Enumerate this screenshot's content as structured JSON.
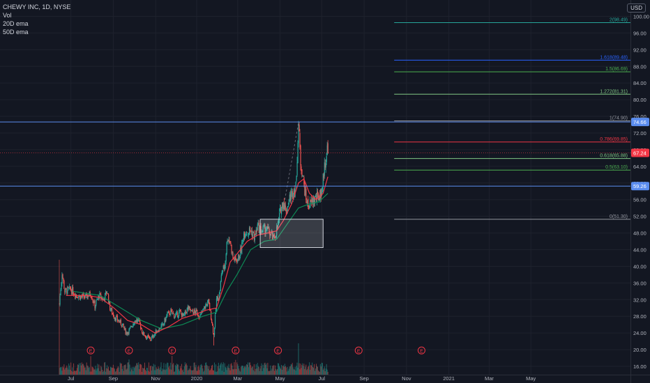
{
  "legend": {
    "title": "CHEWY INC, 1D, NYSE",
    "vol": "Vol",
    "ema20": "20D ema",
    "ema50": "50D ema"
  },
  "currency": "USD",
  "colors": {
    "up": "#26a69a",
    "down": "#ef5350",
    "ema20": "#f23645",
    "ema50": "#0d8a55",
    "hline": "#5b8def",
    "box": "#ffffff"
  },
  "chart_data": {
    "type": "candlestick",
    "ylim": [
      14,
      102.5
    ],
    "y_ticks": [
      16,
      20,
      24,
      28,
      32,
      36,
      40,
      44,
      48,
      52,
      56,
      60,
      64,
      68,
      72,
      76,
      80,
      84,
      88,
      92,
      96,
      100
    ],
    "x_labels": [
      "Jul",
      "Sep",
      "Nov",
      "2020",
      "Mar",
      "May",
      "Jul",
      "Sep",
      "Nov",
      "2021",
      "Mar",
      "May"
    ],
    "x_label_days": [
      17,
      79,
      141,
      201,
      261,
      323,
      384,
      446,
      508,
      570,
      629,
      690
    ],
    "earnings_markers": [
      "E",
      "E",
      "E",
      "E",
      "E",
      "E",
      "E"
    ],
    "earnings_days": [
      46,
      102,
      165,
      258,
      320,
      438,
      530
    ],
    "fib_levels": [
      {
        "ratio": "2",
        "value": 98.49,
        "label": "2(98.49)",
        "color": "#26a69a"
      },
      {
        "ratio": "1.618",
        "value": 89.48,
        "label": "1.618(89.48)",
        "color": "#2962ff"
      },
      {
        "ratio": "1.5",
        "value": 86.69,
        "label": "1.5(86.69)",
        "color": "#4caf50"
      },
      {
        "ratio": "1.272",
        "value": 81.31,
        "label": "1.272(81.31)",
        "color": "#81c784"
      },
      {
        "ratio": "1",
        "value": 74.9,
        "label": "1(74.90)",
        "color": "#9598a1"
      },
      {
        "ratio": "0.786",
        "value": 69.85,
        "label": "0.786(69.85)",
        "color": "#f23645"
      },
      {
        "ratio": "0.618",
        "value": 65.88,
        "label": "0.618(65.88)",
        "color": "#81c784"
      },
      {
        "ratio": "0.5",
        "value": 63.1,
        "label": "0.5(63.10)",
        "color": "#4caf50"
      },
      {
        "ratio": "0",
        "value": 51.3,
        "label": "0(51.30)",
        "color": "#9598a1"
      }
    ],
    "horizontal_lines": [
      {
        "value": 74.66,
        "label": "74.66",
        "color": "#5b8def"
      },
      {
        "value": 59.26,
        "label": "59.26",
        "color": "#5b8def"
      }
    ],
    "last_price": {
      "value": 67.24,
      "label": "67.24",
      "color": "#f23645"
    },
    "price_path": [
      [
        0,
        31.0
      ],
      [
        4,
        38.5
      ],
      [
        8,
        34.0
      ],
      [
        16,
        34.5
      ],
      [
        26,
        33.0
      ],
      [
        36,
        32.5
      ],
      [
        46,
        33.5
      ],
      [
        52,
        30.5
      ],
      [
        58,
        33.0
      ],
      [
        64,
        32.0
      ],
      [
        70,
        34.0
      ],
      [
        74,
        30.0
      ],
      [
        80,
        28.0
      ],
      [
        86,
        27.0
      ],
      [
        92,
        26.0
      ],
      [
        98,
        24.0
      ],
      [
        104,
        25.0
      ],
      [
        110,
        27.0
      ],
      [
        116,
        27.0
      ],
      [
        122,
        24.0
      ],
      [
        128,
        23.0
      ],
      [
        134,
        22.5
      ],
      [
        140,
        24.0
      ],
      [
        146,
        25.0
      ],
      [
        152,
        26.0
      ],
      [
        158,
        28.5
      ],
      [
        164,
        29.0
      ],
      [
        170,
        28.0
      ],
      [
        176,
        29.0
      ],
      [
        182,
        28.0
      ],
      [
        188,
        30.0
      ],
      [
        194,
        29.0
      ],
      [
        200,
        29.0
      ],
      [
        206,
        28.0
      ],
      [
        212,
        30.0
      ],
      [
        218,
        31.5
      ],
      [
        222,
        28.0
      ],
      [
        226,
        23.5
      ],
      [
        230,
        32.0
      ],
      [
        234,
        33.0
      ],
      [
        238,
        39.0
      ],
      [
        242,
        40.0
      ],
      [
        246,
        47.0
      ],
      [
        250,
        46.0
      ],
      [
        254,
        42.0
      ],
      [
        258,
        41.5
      ],
      [
        262,
        42.0
      ],
      [
        266,
        44.0
      ],
      [
        270,
        48.0
      ],
      [
        274,
        48.5
      ],
      [
        280,
        48.5
      ],
      [
        286,
        47.0
      ],
      [
        290,
        49.5
      ],
      [
        296,
        48.5
      ],
      [
        302,
        49.0
      ],
      [
        308,
        48.0
      ],
      [
        314,
        46.5
      ],
      [
        320,
        50.0
      ],
      [
        324,
        54.0
      ],
      [
        328,
        55.5
      ],
      [
        332,
        53.0
      ],
      [
        336,
        56.0
      ],
      [
        342,
        58.0
      ],
      [
        346,
        59.0
      ],
      [
        350,
        74.0
      ],
      [
        353,
        65.0
      ],
      [
        356,
        62.0
      ],
      [
        360,
        57.0
      ],
      [
        364,
        54.5
      ],
      [
        368,
        55.0
      ],
      [
        372,
        56.0
      ],
      [
        378,
        56.5
      ],
      [
        384,
        58.0
      ],
      [
        388,
        64.0
      ],
      [
        391,
        67.0
      ],
      [
        393,
        69.5
      ]
    ],
    "ema20": [
      [
        10,
        33.0
      ],
      [
        40,
        33.0
      ],
      [
        60,
        32.5
      ],
      [
        80,
        30.0
      ],
      [
        100,
        27.0
      ],
      [
        120,
        26.0
      ],
      [
        140,
        24.0
      ],
      [
        160,
        25.5
      ],
      [
        180,
        27.5
      ],
      [
        200,
        28.5
      ],
      [
        215,
        29.5
      ],
      [
        230,
        30.0
      ],
      [
        240,
        35.0
      ],
      [
        250,
        41.0
      ],
      [
        260,
        43.0
      ],
      [
        275,
        46.0
      ],
      [
        290,
        47.5
      ],
      [
        305,
        48.0
      ],
      [
        318,
        48.5
      ],
      [
        328,
        51.0
      ],
      [
        340,
        55.0
      ],
      [
        350,
        60.0
      ],
      [
        358,
        61.0
      ],
      [
        366,
        57.5
      ],
      [
        376,
        56.0
      ],
      [
        386,
        57.5
      ],
      [
        393,
        61.5
      ]
    ],
    "ema50": [
      [
        20,
        34.0
      ],
      [
        60,
        33.0
      ],
      [
        90,
        30.0
      ],
      [
        120,
        27.0
      ],
      [
        150,
        25.0
      ],
      [
        180,
        26.0
      ],
      [
        210,
        28.0
      ],
      [
        230,
        29.0
      ],
      [
        245,
        34.0
      ],
      [
        260,
        38.0
      ],
      [
        280,
        44.0
      ],
      [
        300,
        46.0
      ],
      [
        318,
        46.5
      ],
      [
        335,
        50.5
      ],
      [
        350,
        54.0
      ],
      [
        366,
        55.0
      ],
      [
        380,
        55.5
      ],
      [
        393,
        57.5
      ]
    ],
    "rectangle": {
      "day_start": 294,
      "day_end": 386,
      "top": 51.3,
      "bottom": 44.5
    }
  }
}
